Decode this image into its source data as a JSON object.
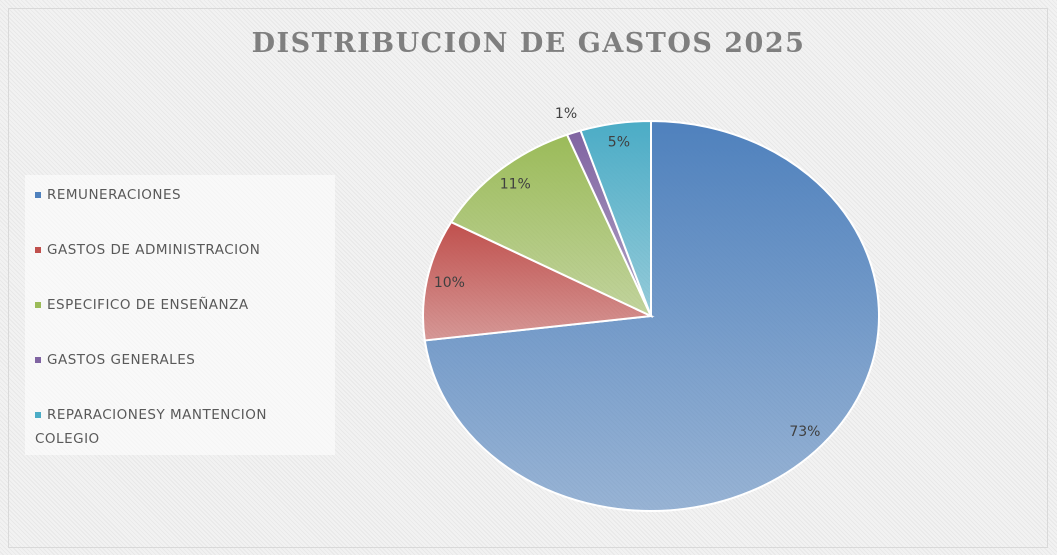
{
  "chart_data": {
    "type": "pie",
    "title": "DISTRIBUCION DE GASTOS 2025",
    "categories": [
      "REMUNERACIONES",
      "GASTOS DE ADMINISTRACION",
      "ESPECIFICO DE ENSEÑANZA",
      "GASTOS GENERALES",
      "REPARACIONESY MANTENCION COLEGIO"
    ],
    "values": [
      73,
      10,
      11,
      1,
      5
    ],
    "value_labels": [
      "73%",
      "10%",
      "11%",
      "1%",
      "5%"
    ],
    "colors": [
      "#4f81bd",
      "#c0504d",
      "#9bbb59",
      "#8064a2",
      "#4bacc6"
    ],
    "legend": "left"
  }
}
